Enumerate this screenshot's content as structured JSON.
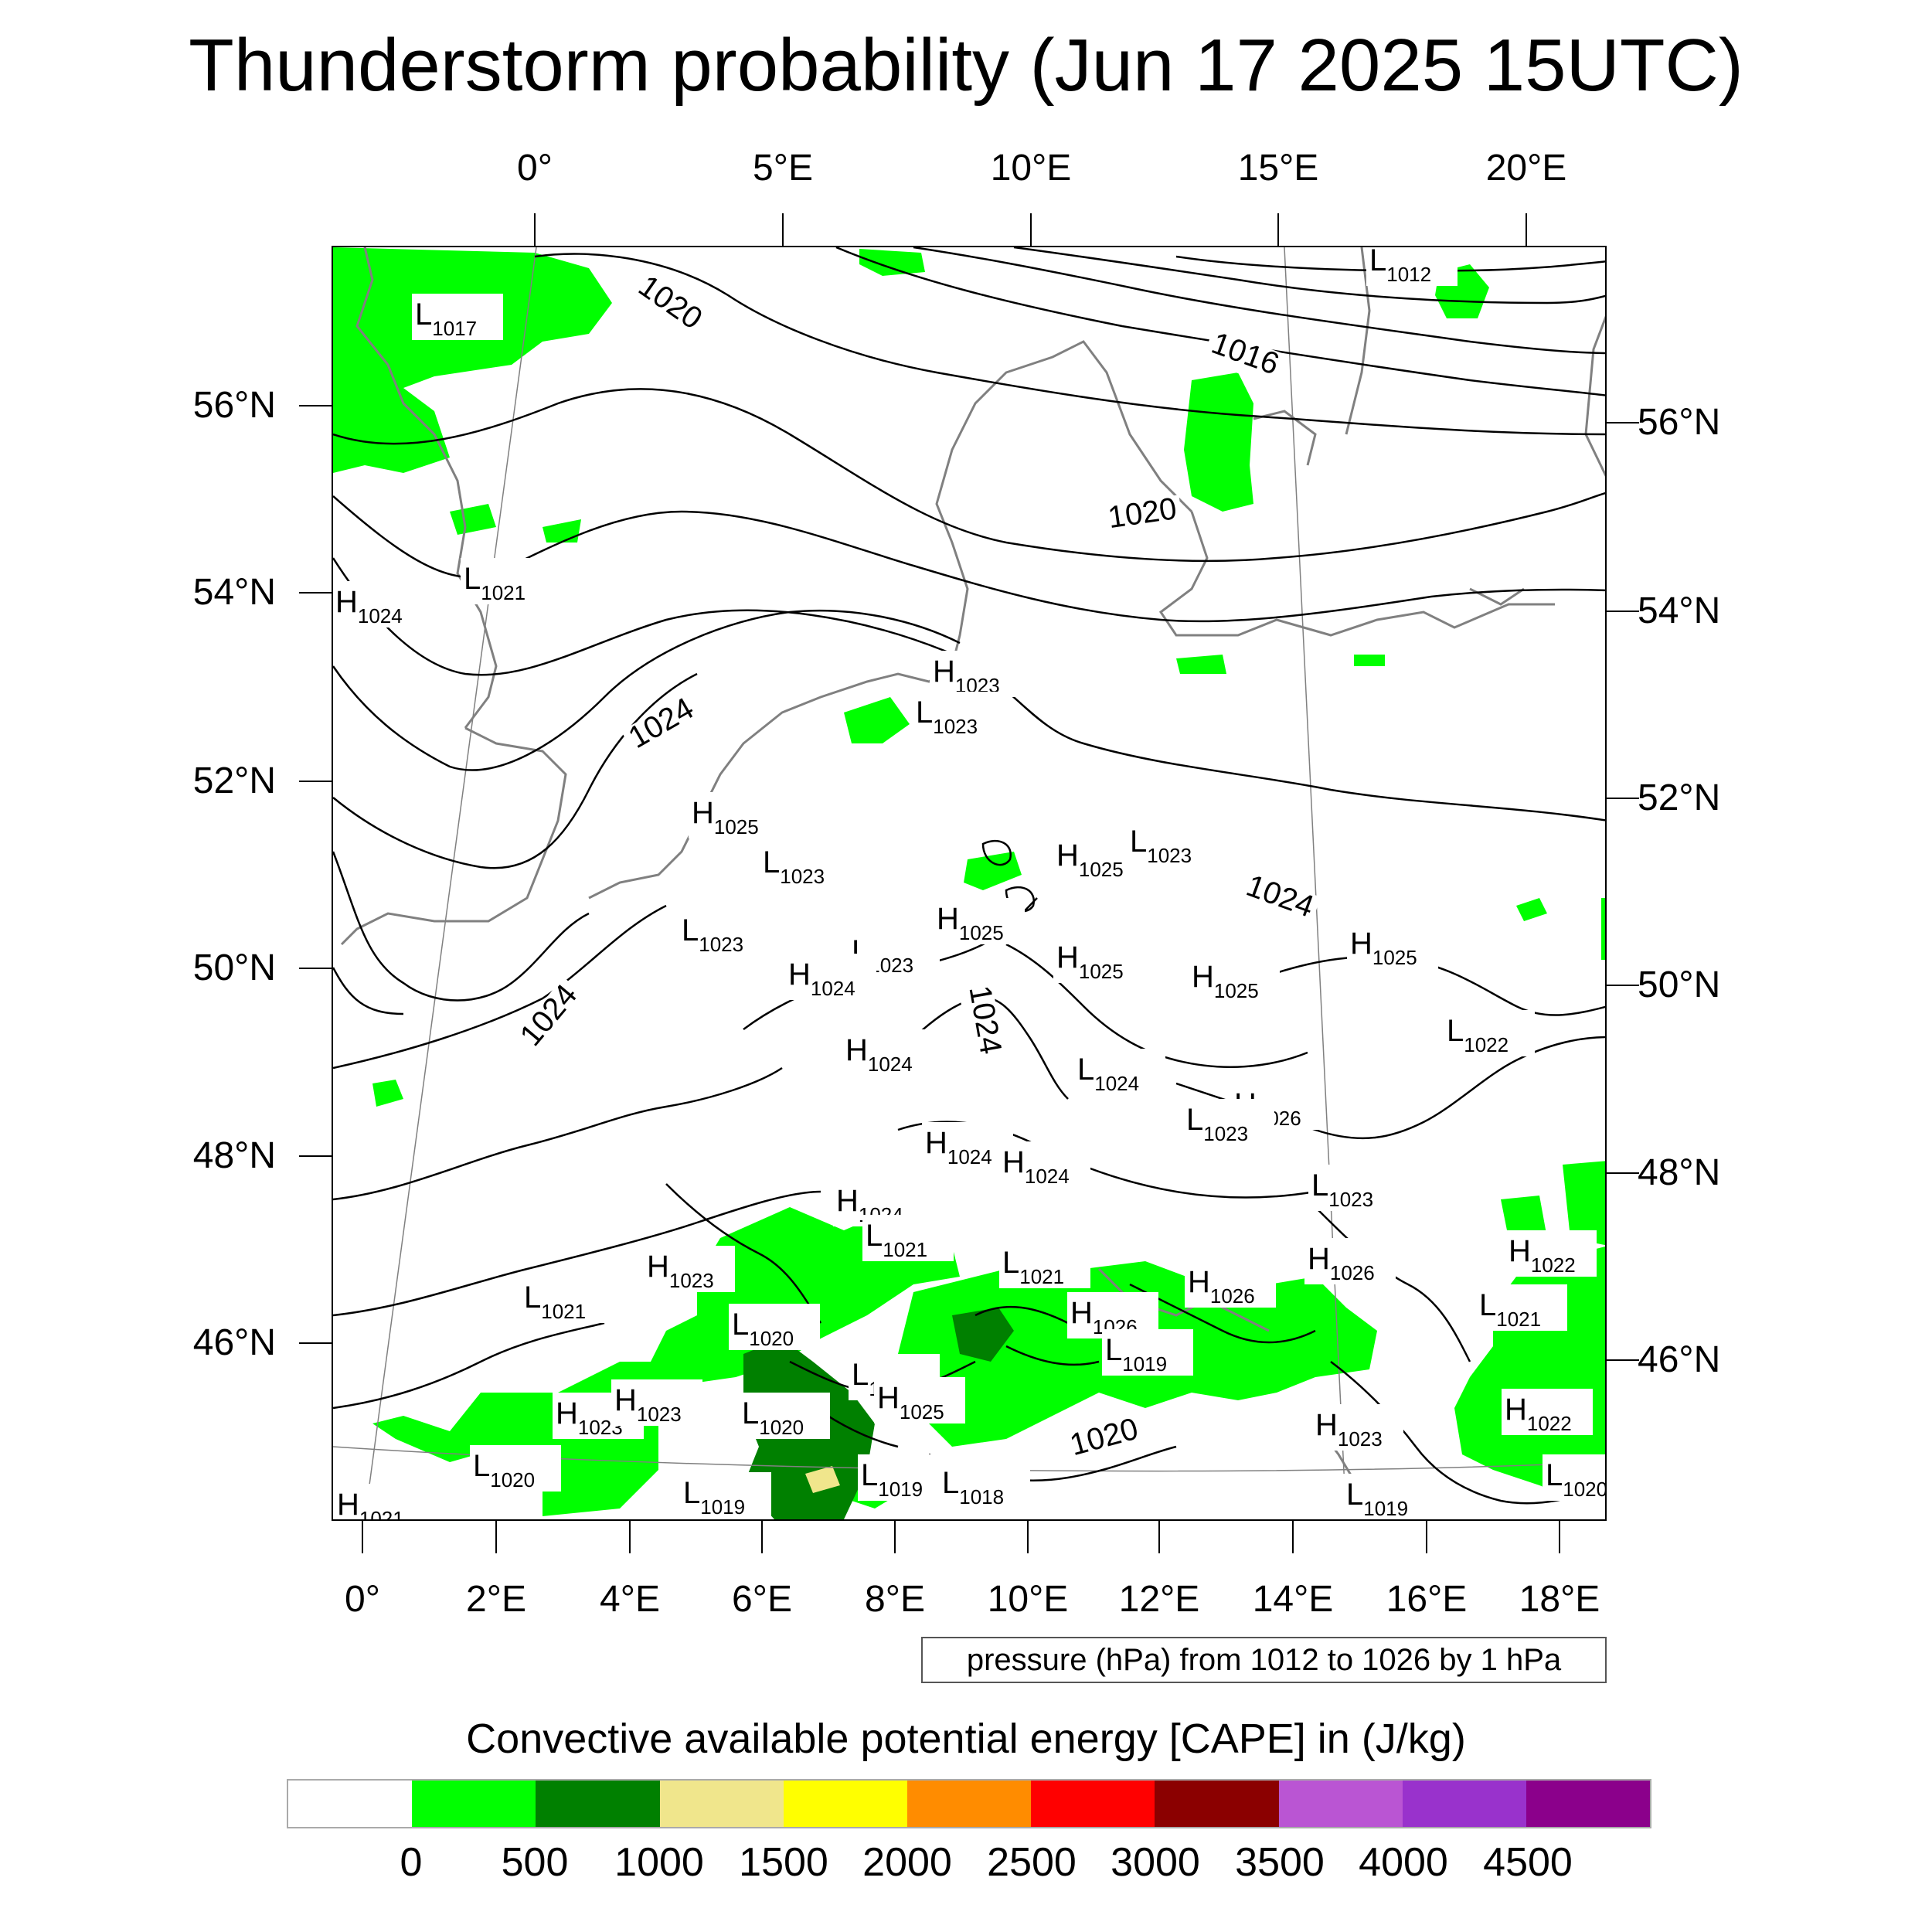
{
  "title": "Thunderstorm probability (Jun 17 2025 15UTC)",
  "axes": {
    "top_labels": [
      "0°",
      "5°E",
      "10°E",
      "15°E",
      "20°E"
    ],
    "left_labels": [
      "56°N",
      "54°N",
      "52°N",
      "50°N",
      "48°N",
      "46°N"
    ],
    "right_labels": [
      "56°N",
      "54°N",
      "52°N",
      "50°N",
      "48°N",
      "46°N"
    ],
    "bottom_labels": [
      "0°",
      "2°E",
      "4°E",
      "6°E",
      "8°E",
      "10°E",
      "12°E",
      "14°E",
      "16°E",
      "18°E"
    ]
  },
  "pressure_info": "pressure (hPa) from 1012 to 1026 by 1 hPa",
  "contour_labels": [
    "1020",
    "1016",
    "1020",
    "1024",
    "1024",
    "1024",
    "1024",
    "1020"
  ],
  "pressure_centers": [
    {
      "type": "L",
      "value": "1017"
    },
    {
      "type": "L",
      "value": "1012"
    },
    {
      "type": "L",
      "value": "1021"
    },
    {
      "type": "H",
      "value": "1024"
    },
    {
      "type": "H",
      "value": "1023"
    },
    {
      "type": "L",
      "value": "1023"
    },
    {
      "type": "H",
      "value": "1025"
    },
    {
      "type": "L",
      "value": "1023"
    },
    {
      "type": "H",
      "value": "1025"
    },
    {
      "type": "L",
      "value": "1023"
    },
    {
      "type": "L",
      "value": "1023"
    },
    {
      "type": "H",
      "value": "1025"
    },
    {
      "type": "L",
      "value": "1023"
    },
    {
      "type": "H",
      "value": "1024"
    },
    {
      "type": "H",
      "value": "1025"
    },
    {
      "type": "H",
      "value": "1025"
    },
    {
      "type": "H",
      "value": "1025"
    },
    {
      "type": "L",
      "value": "1022"
    },
    {
      "type": "H",
      "value": "1024"
    },
    {
      "type": "L",
      "value": "1024"
    },
    {
      "type": "H",
      "value": "1026"
    },
    {
      "type": "L",
      "value": "1023"
    },
    {
      "type": "H",
      "value": "1024"
    },
    {
      "type": "H",
      "value": "1024"
    },
    {
      "type": "H",
      "value": "1024"
    },
    {
      "type": "L",
      "value": "1023"
    },
    {
      "type": "L",
      "value": "1021"
    },
    {
      "type": "H",
      "value": "1023"
    },
    {
      "type": "L",
      "value": "1021"
    },
    {
      "type": "L",
      "value": "1021"
    },
    {
      "type": "H",
      "value": "1026"
    },
    {
      "type": "H",
      "value": "1026"
    },
    {
      "type": "H",
      "value": "1022"
    },
    {
      "type": "L",
      "value": "1020"
    },
    {
      "type": "H",
      "value": "1026"
    },
    {
      "type": "L",
      "value": "1021"
    },
    {
      "type": "L",
      "value": "1019"
    },
    {
      "type": "L",
      "value": "1020"
    },
    {
      "type": "H",
      "value": "1025"
    },
    {
      "type": "L",
      "value": "1020"
    },
    {
      "type": "H",
      "value": "1023"
    },
    {
      "type": "H",
      "value": "1023"
    },
    {
      "type": "H",
      "value": "1022"
    },
    {
      "type": "H",
      "value": "1023"
    },
    {
      "type": "L",
      "value": "1020"
    },
    {
      "type": "L",
      "value": "1019"
    },
    {
      "type": "L",
      "value": "1019"
    },
    {
      "type": "L",
      "value": "1020"
    },
    {
      "type": "L",
      "value": "1018"
    },
    {
      "type": "L",
      "value": "1019"
    },
    {
      "type": "H",
      "value": "1021"
    }
  ],
  "legend": {
    "title": "Convective available potential energy [CAPE] in (J/kg)",
    "colors": [
      "#ffffff",
      "#00ff00",
      "#008000",
      "#f0e68c",
      "#ffff00",
      "#ff8c00",
      "#ff0000",
      "#8b0000",
      "#ba55d3",
      "#9932cc",
      "#8b008b"
    ],
    "ticks": [
      "0",
      "500",
      "1000",
      "1500",
      "2000",
      "2500",
      "3000",
      "3500",
      "4000",
      "4500"
    ]
  },
  "colors": {
    "cape_0_500": "#00ff00",
    "cape_500_1000": "#008000",
    "cape_1000_1500": "#f0e68c",
    "coastline": "#808080",
    "contour": "#000000"
  }
}
